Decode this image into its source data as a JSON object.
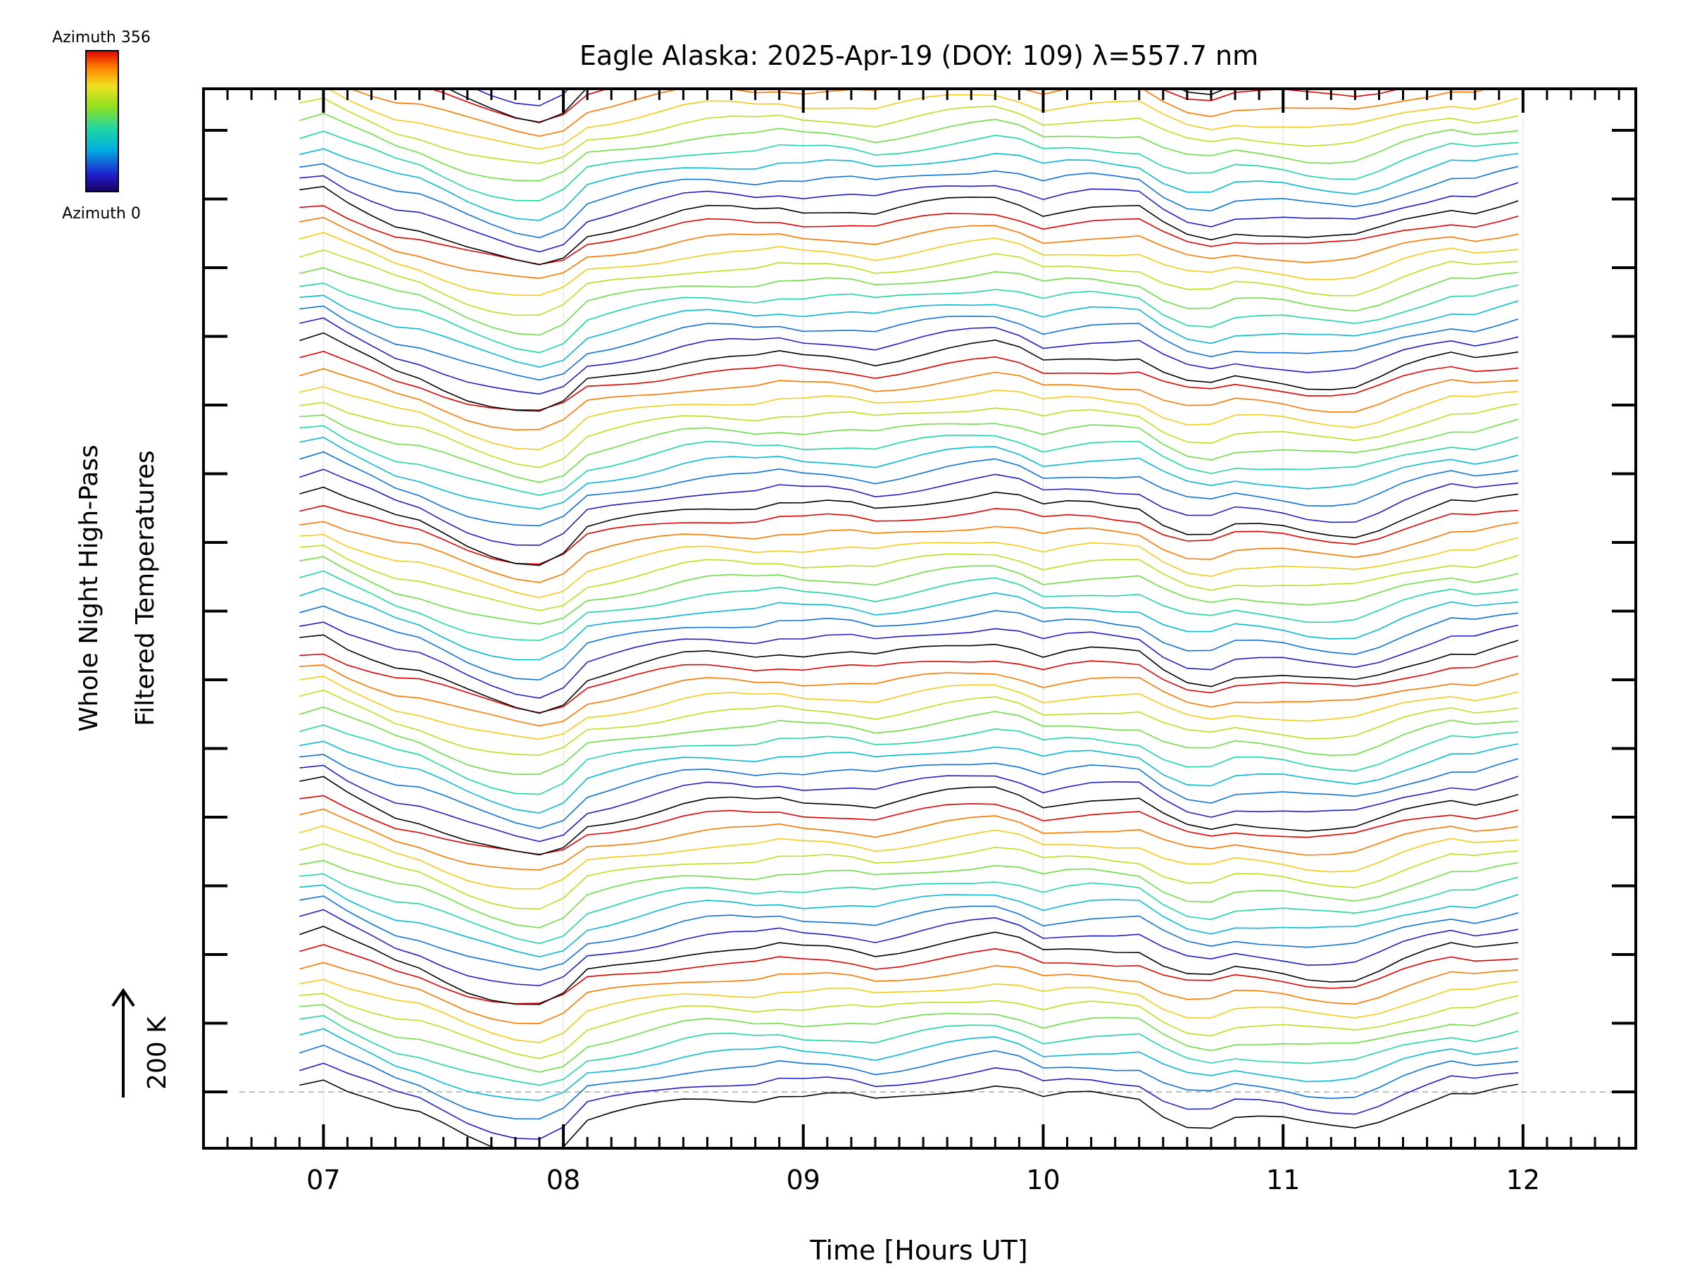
{
  "chart_data": {
    "type": "line",
    "title": "Eagle Alaska: 2025-Apr-19 (DOY: 109) λ=557.7 nm",
    "xlabel": "Time [Hours UT]",
    "ylabel_line1": "Whole Night High-Pass",
    "ylabel_line2": "Filtered Temperatures",
    "x_ticks": [
      "07",
      "08",
      "09",
      "10",
      "11",
      "12"
    ],
    "xlim": [
      6.5,
      12.47
    ],
    "scale_label": "200 K",
    "scale_kelvin": 200,
    "colorbar": {
      "top_label": "Azimuth 356",
      "bottom_label": "Azimuth 0",
      "colormap": "rainbow"
    },
    "series_groups": 8,
    "series_per_group": 10,
    "azimuth_range": [
      0,
      356
    ],
    "group_offset_kelvin": 280,
    "x_start": 6.9,
    "x_end": 11.98,
    "x_step": 0.1,
    "base_profile": [
      [
        6.9,
        20
      ],
      [
        6.95,
        35
      ],
      [
        7.0,
        30
      ],
      [
        7.1,
        5
      ],
      [
        7.2,
        -15
      ],
      [
        7.3,
        -35
      ],
      [
        7.4,
        -45
      ],
      [
        7.5,
        -65
      ],
      [
        7.6,
        -85
      ],
      [
        7.7,
        -100
      ],
      [
        7.8,
        -112
      ],
      [
        7.9,
        -118
      ],
      [
        7.95,
        -115
      ],
      [
        8.0,
        -100
      ],
      [
        8.05,
        -70
      ],
      [
        8.1,
        -55
      ],
      [
        8.2,
        -45
      ],
      [
        8.3,
        -35
      ],
      [
        8.4,
        -25
      ],
      [
        8.5,
        -15
      ],
      [
        8.6,
        -10
      ],
      [
        8.65,
        -5
      ],
      [
        8.7,
        -10
      ],
      [
        8.8,
        -12
      ],
      [
        8.9,
        -5
      ],
      [
        9.0,
        -10
      ],
      [
        9.1,
        -8
      ],
      [
        9.2,
        -10
      ],
      [
        9.3,
        -18
      ],
      [
        9.4,
        -10
      ],
      [
        9.5,
        -2
      ],
      [
        9.6,
        5
      ],
      [
        9.7,
        10
      ],
      [
        9.8,
        15
      ],
      [
        9.9,
        5
      ],
      [
        10.0,
        -15
      ],
      [
        10.1,
        -8
      ],
      [
        10.2,
        -5
      ],
      [
        10.3,
        -8
      ],
      [
        10.4,
        -10
      ],
      [
        10.5,
        -40
      ],
      [
        10.6,
        -60
      ],
      [
        10.7,
        -65
      ],
      [
        10.8,
        -50
      ],
      [
        10.85,
        -45
      ],
      [
        10.9,
        -52
      ],
      [
        11.0,
        -55
      ],
      [
        11.1,
        -62
      ],
      [
        11.2,
        -64
      ],
      [
        11.3,
        -64
      ],
      [
        11.4,
        -50
      ],
      [
        11.5,
        -32
      ],
      [
        11.6,
        -18
      ],
      [
        11.7,
        -5
      ],
      [
        11.8,
        -10
      ],
      [
        11.9,
        0
      ],
      [
        11.98,
        8
      ]
    ]
  }
}
